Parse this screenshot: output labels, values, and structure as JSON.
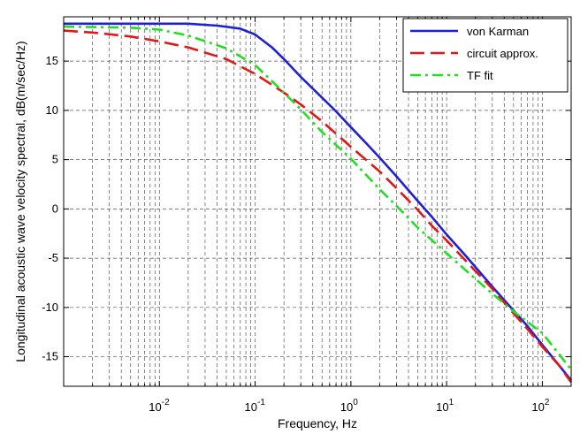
{
  "chart_data": {
    "type": "line",
    "title": "",
    "xlabel": "Frequency, Hz",
    "ylabel": "Longitudinal acoustic wave velocity spectral, dB(m/sec/Hz)",
    "xscale": "log",
    "xlim": [
      0.001,
      200
    ],
    "ylim": [
      -18,
      19.5
    ],
    "grid": true,
    "legend_position": "top-right",
    "x_ticks": [
      {
        "value": 0.01,
        "base": "10",
        "exp": "-2"
      },
      {
        "value": 0.1,
        "base": "10",
        "exp": "-1"
      },
      {
        "value": 1,
        "base": "10",
        "exp": "0"
      },
      {
        "value": 10,
        "base": "10",
        "exp": "1"
      },
      {
        "value": 100,
        "base": "10",
        "exp": "2"
      }
    ],
    "y_ticks": [
      {
        "value": 15,
        "label": "15"
      },
      {
        "value": 10,
        "label": "10"
      },
      {
        "value": 5,
        "label": "5"
      },
      {
        "value": 0,
        "label": "0"
      },
      {
        "value": -5,
        "label": "-5"
      },
      {
        "value": -10,
        "label": "-10"
      },
      {
        "value": -15,
        "label": "-15"
      }
    ],
    "series": [
      {
        "name": "von Karman",
        "color": "#1f1fd6",
        "style": "solid",
        "points": [
          [
            0.001,
            18.8
          ],
          [
            0.005,
            18.8
          ],
          [
            0.02,
            18.8
          ],
          [
            0.04,
            18.6
          ],
          [
            0.07,
            18.3
          ],
          [
            0.1,
            17.7
          ],
          [
            0.15,
            16.4
          ],
          [
            0.2,
            15.2
          ],
          [
            0.3,
            13.4
          ],
          [
            0.5,
            11.3
          ],
          [
            0.7,
            9.9
          ],
          [
            1,
            8.3
          ],
          [
            1.5,
            6.5
          ],
          [
            2,
            5.2
          ],
          [
            3,
            3.3
          ],
          [
            5,
            0.8
          ],
          [
            7,
            -0.8
          ],
          [
            10,
            -2.6
          ],
          [
            15,
            -4.5
          ],
          [
            20,
            -5.9
          ],
          [
            30,
            -7.9
          ],
          [
            50,
            -10.3
          ],
          [
            70,
            -11.9
          ],
          [
            100,
            -13.8
          ],
          [
            150,
            -15.9
          ],
          [
            200,
            -17.4
          ]
        ]
      },
      {
        "name": "circuit approx.",
        "color": "#e01818",
        "style": "dashed",
        "points": [
          [
            0.001,
            18.1
          ],
          [
            0.002,
            17.9
          ],
          [
            0.005,
            17.5
          ],
          [
            0.01,
            17.0
          ],
          [
            0.02,
            16.4
          ],
          [
            0.05,
            15.2
          ],
          [
            0.1,
            13.7
          ],
          [
            0.2,
            11.8
          ],
          [
            0.3,
            10.6
          ],
          [
            0.5,
            8.9
          ],
          [
            1,
            6.3
          ],
          [
            2,
            3.8
          ],
          [
            3,
            2.1
          ],
          [
            5,
            -0.1
          ],
          [
            7,
            -1.7
          ],
          [
            10,
            -3.2
          ],
          [
            20,
            -6.3
          ],
          [
            30,
            -8.1
          ],
          [
            50,
            -10.6
          ],
          [
            70,
            -12.2
          ],
          [
            100,
            -14.0
          ],
          [
            150,
            -15.9
          ],
          [
            200,
            -17.6
          ]
        ]
      },
      {
        "name": "TF fit",
        "color": "#22dd22",
        "style": "dashdot",
        "points": [
          [
            0.001,
            18.5
          ],
          [
            0.005,
            18.4
          ],
          [
            0.01,
            18.2
          ],
          [
            0.02,
            17.6
          ],
          [
            0.05,
            16.3
          ],
          [
            0.1,
            14.6
          ],
          [
            0.2,
            11.8
          ],
          [
            0.3,
            10.1
          ],
          [
            0.5,
            7.8
          ],
          [
            1,
            5.1
          ],
          [
            2,
            2.0
          ],
          [
            3,
            0.3
          ],
          [
            5,
            -1.9
          ],
          [
            10,
            -4.5
          ],
          [
            20,
            -7.1
          ],
          [
            30,
            -8.6
          ],
          [
            50,
            -10.4
          ],
          [
            100,
            -12.6
          ],
          [
            200,
            -16.3
          ]
        ]
      }
    ]
  }
}
